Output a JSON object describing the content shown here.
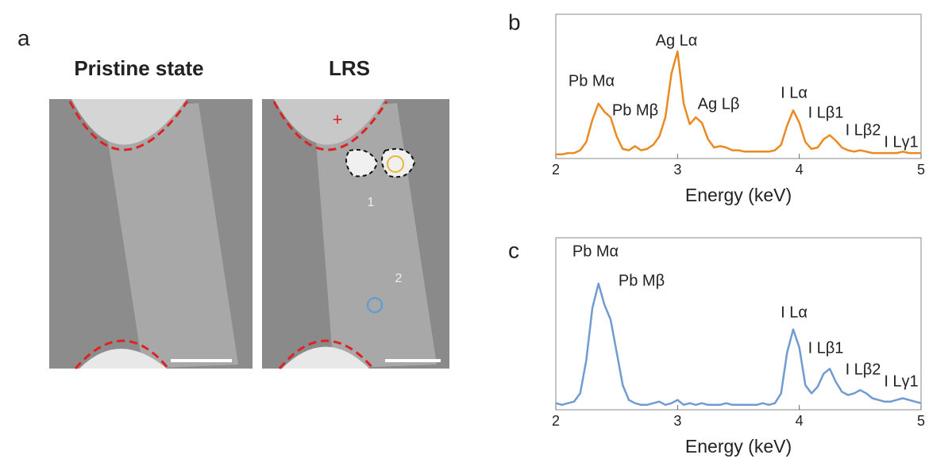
{
  "figure": {
    "panel_labels": [
      "a",
      "b",
      "c"
    ],
    "image_titles": [
      "Pristine state",
      "LRS"
    ],
    "image_markers": [
      "+",
      "1",
      "2"
    ]
  },
  "chart_data": [
    {
      "type": "line",
      "xlabel": "Energy (keV)",
      "x": [
        2.0,
        2.05,
        2.1,
        2.15,
        2.2,
        2.25,
        2.3,
        2.35,
        2.4,
        2.45,
        2.5,
        2.55,
        2.6,
        2.65,
        2.7,
        2.75,
        2.8,
        2.85,
        2.9,
        2.95,
        3.0,
        3.05,
        3.1,
        3.15,
        3.2,
        3.25,
        3.3,
        3.35,
        3.4,
        3.45,
        3.5,
        3.55,
        3.6,
        3.65,
        3.7,
        3.75,
        3.8,
        3.85,
        3.9,
        3.95,
        4.0,
        4.05,
        4.1,
        4.15,
        4.2,
        4.25,
        4.3,
        4.35,
        4.4,
        4.45,
        4.5,
        4.55,
        4.6,
        4.65,
        4.7,
        4.75,
        4.8,
        4.85,
        4.9,
        4.95,
        5.0
      ],
      "series": [
        {
          "color": "#ea8a22",
          "values": [
            3,
            3,
            4,
            4,
            6,
            12,
            28,
            40,
            34,
            30,
            16,
            7,
            6,
            9,
            6,
            7,
            10,
            16,
            30,
            62,
            78,
            40,
            25,
            30,
            26,
            14,
            8,
            9,
            8,
            6,
            6,
            5,
            5,
            5,
            5,
            5,
            6,
            10,
            24,
            35,
            26,
            12,
            7,
            8,
            14,
            17,
            13,
            8,
            6,
            5,
            6,
            5,
            4,
            4,
            4,
            4,
            4,
            5,
            4,
            4,
            4
          ]
        }
      ],
      "xlim": [
        2,
        5
      ],
      "xticks": [
        2,
        3,
        4,
        5
      ],
      "ylim": [
        0,
        105
      ],
      "annotations": [
        "Pb Mα",
        "Pb Mβ",
        "Ag Lα",
        "Ag Lβ",
        "I Lα",
        "I Lβ1",
        "I Lβ2",
        "I Lγ1"
      ]
    },
    {
      "type": "line",
      "xlabel": "Energy (keV)",
      "x": [
        2.0,
        2.05,
        2.1,
        2.15,
        2.2,
        2.25,
        2.3,
        2.35,
        2.4,
        2.45,
        2.5,
        2.55,
        2.6,
        2.65,
        2.7,
        2.75,
        2.8,
        2.85,
        2.9,
        2.95,
        3.0,
        3.05,
        3.1,
        3.15,
        3.2,
        3.25,
        3.3,
        3.35,
        3.4,
        3.45,
        3.5,
        3.55,
        3.6,
        3.65,
        3.7,
        3.75,
        3.8,
        3.85,
        3.9,
        3.95,
        4.0,
        4.05,
        4.1,
        4.15,
        4.2,
        4.25,
        4.3,
        4.35,
        4.4,
        4.45,
        4.5,
        4.55,
        4.6,
        4.65,
        4.7,
        4.75,
        4.8,
        4.85,
        4.9,
        4.95,
        5.0
      ],
      "series": [
        {
          "color": "#6f9bd1",
          "values": [
            4,
            3,
            4,
            5,
            10,
            30,
            62,
            77,
            64,
            55,
            35,
            15,
            6,
            4,
            3,
            3,
            4,
            5,
            3,
            4,
            6,
            3,
            4,
            3,
            4,
            3,
            3,
            3,
            4,
            3,
            3,
            3,
            3,
            3,
            4,
            3,
            4,
            10,
            35,
            49,
            38,
            15,
            10,
            14,
            22,
            25,
            17,
            11,
            9,
            10,
            12,
            10,
            7,
            6,
            5,
            5,
            6,
            7,
            6,
            5,
            4
          ]
        }
      ],
      "xlim": [
        2,
        5
      ],
      "xticks": [
        2,
        3,
        4,
        5
      ],
      "ylim": [
        0,
        105
      ],
      "annotations": [
        "Pb Mα",
        "Pb Mβ",
        "I Lα",
        "I Lβ1",
        "I Lβ2",
        "I Lγ1"
      ]
    }
  ]
}
